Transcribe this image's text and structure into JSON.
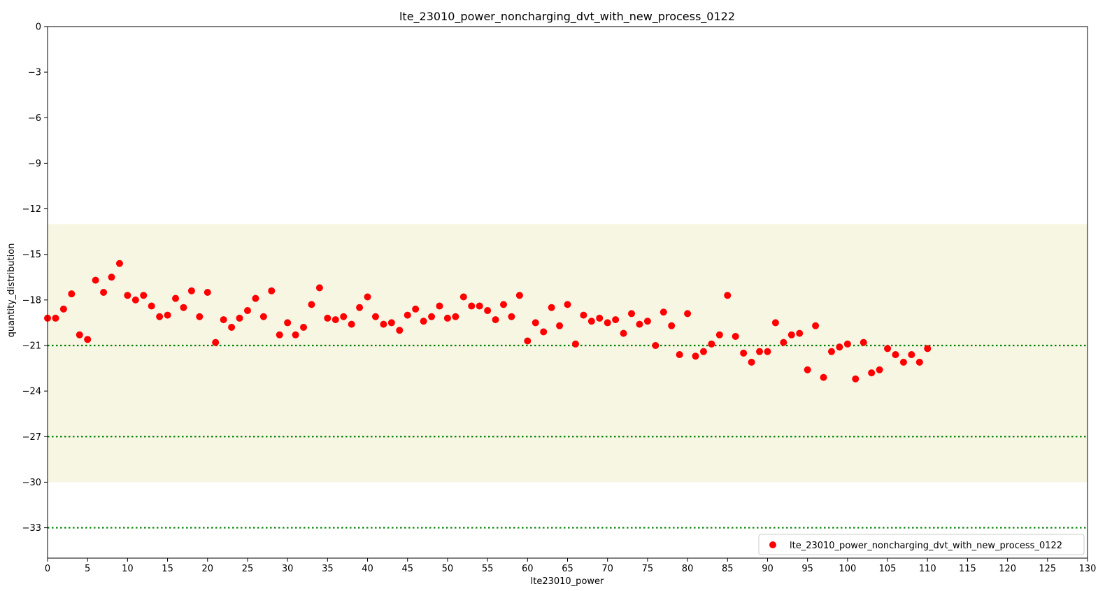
{
  "chart_data": {
    "type": "scatter",
    "title": "lte_23010_power_noncharging_dvt_with_new_process_0122",
    "xlabel": "lte23010_power",
    "ylabel": "quantity_distribution",
    "xlim": [
      0,
      130
    ],
    "ylim": [
      -35,
      0
    ],
    "xticks": [
      0,
      5,
      10,
      15,
      20,
      25,
      30,
      35,
      40,
      45,
      50,
      55,
      60,
      65,
      70,
      75,
      80,
      85,
      90,
      95,
      100,
      105,
      110,
      115,
      120,
      125,
      130
    ],
    "yticks": [
      0,
      -3,
      -6,
      -9,
      -12,
      -15,
      -18,
      -21,
      -24,
      -27,
      -30,
      -33
    ],
    "shaded_band": {
      "y_from": -30,
      "y_to": -13,
      "color": "#f7f6e3"
    },
    "reference_lines": [
      {
        "y": -21,
        "color": "#008000",
        "style": "dotted"
      },
      {
        "y": -27,
        "color": "#008000",
        "style": "dotted"
      },
      {
        "y": -33,
        "color": "#008000",
        "style": "dotted"
      }
    ],
    "legend_position": "bottom-right",
    "grid": false,
    "series": [
      {
        "name": "lte_23010_power_noncharging_dvt_with_new_process_0122",
        "color": "#ff0000",
        "x": [
          0,
          1,
          2,
          3,
          4,
          5,
          6,
          7,
          8,
          9,
          10,
          11,
          12,
          13,
          14,
          15,
          16,
          17,
          18,
          19,
          20,
          21,
          22,
          23,
          24,
          25,
          26,
          27,
          28,
          29,
          30,
          31,
          32,
          33,
          34,
          35,
          36,
          37,
          38,
          39,
          40,
          41,
          42,
          43,
          44,
          45,
          46,
          47,
          48,
          49,
          50,
          51,
          52,
          53,
          54,
          55,
          56,
          57,
          58,
          59,
          60,
          61,
          62,
          63,
          64,
          65,
          66,
          67,
          68,
          69,
          70,
          71,
          72,
          73,
          74,
          75,
          76,
          77,
          78,
          79,
          80,
          81,
          82,
          83,
          84,
          85,
          86,
          87,
          88,
          89,
          90,
          91,
          92,
          93,
          94,
          95,
          96,
          97,
          98,
          99,
          100,
          101,
          102,
          103,
          104,
          105,
          106,
          107,
          108,
          109,
          110
        ],
        "y": [
          -19.2,
          -19.2,
          -18.6,
          -17.6,
          -20.3,
          -20.6,
          -16.7,
          -17.5,
          -16.5,
          -15.6,
          -17.7,
          -18.0,
          -17.7,
          -18.4,
          -19.1,
          -19.0,
          -17.9,
          -18.5,
          -17.4,
          -19.1,
          -17.5,
          -20.8,
          -19.3,
          -19.8,
          -19.2,
          -18.7,
          -17.9,
          -19.1,
          -17.4,
          -20.3,
          -19.5,
          -20.3,
          -19.8,
          -18.3,
          -17.2,
          -19.2,
          -19.3,
          -19.1,
          -19.6,
          -18.5,
          -17.8,
          -19.1,
          -19.6,
          -19.5,
          -20.0,
          -19.0,
          -18.6,
          -19.4,
          -19.1,
          -18.4,
          -19.2,
          -19.1,
          -17.8,
          -18.4,
          -18.4,
          -18.7,
          -19.3,
          -18.3,
          -19.1,
          -17.7,
          -20.7,
          -19.5,
          -20.1,
          -18.5,
          -19.7,
          -18.3,
          -20.9,
          -19.0,
          -19.4,
          -19.2,
          -19.5,
          -19.3,
          -20.2,
          -18.9,
          -19.6,
          -19.4,
          -21.0,
          -18.8,
          -19.7,
          -21.6,
          -18.9,
          -21.7,
          -21.4,
          -20.9,
          -20.3,
          -17.7,
          -20.4,
          -21.5,
          -22.1,
          -21.4,
          -21.4,
          -19.5,
          -20.8,
          -20.3,
          -20.2,
          -22.6,
          -19.7,
          -23.1,
          -21.4,
          -21.1,
          -20.9,
          -23.2,
          -20.8,
          -22.8,
          -22.6,
          -21.2,
          -21.6,
          -22.1,
          -21.6,
          -22.1,
          -21.2
        ]
      }
    ]
  }
}
